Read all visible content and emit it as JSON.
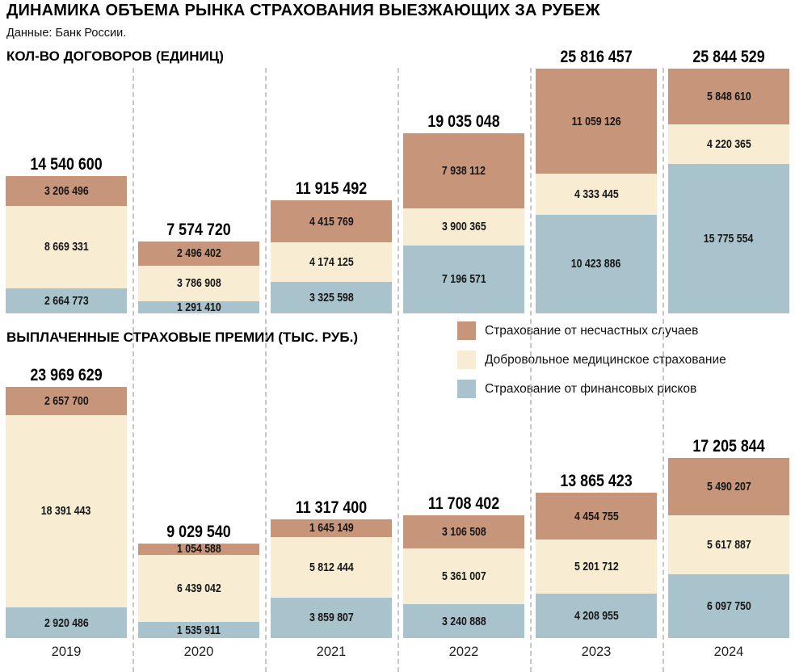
{
  "title": "ДИНАМИКА ОБЪЕМА РЫНКА СТРАХОВАНИЯ ВЫЕЗЖАЮЩИХ ЗА РУБЕЖ",
  "source": "Данные: Банк России.",
  "colors": {
    "accident": "#c79579",
    "medical": "#f8ecd3",
    "financial": "#a9c3cc",
    "separator": "#c7c7c7"
  },
  "legend": [
    {
      "key": "accident",
      "label": "Страхование от несчастных случаев"
    },
    {
      "key": "medical",
      "label": "Добровольное медицинское страхование"
    },
    {
      "key": "financial",
      "label": "Страхование от финансовых рисков"
    }
  ],
  "years": [
    "2019",
    "2020",
    "2021",
    "2022",
    "2023",
    "2024"
  ],
  "chart_data": [
    {
      "type": "bar",
      "stacked": true,
      "title": "КОЛ-ВО ДОГОВОРОВ (ЕДИНИЦ)",
      "categories": [
        "2019",
        "2020",
        "2021",
        "2022",
        "2023",
        "2024"
      ],
      "totals": [
        14540600,
        7574720,
        11915492,
        19035048,
        25816457,
        25844529
      ],
      "series": [
        {
          "key": "accident",
          "name": "Страхование от несчастных случаев",
          "values": [
            3206496,
            2496402,
            4415769,
            7938112,
            11059126,
            5848610
          ]
        },
        {
          "key": "medical",
          "name": "Добровольное медицинское страхование",
          "values": [
            8669331,
            3786908,
            4174125,
            3900365,
            4333445,
            4220365
          ]
        },
        {
          "key": "financial",
          "name": "Страхование от финансовых рисков",
          "values": [
            2664773,
            1291410,
            3325598,
            7196571,
            10423886,
            15775554
          ]
        }
      ],
      "stack_order": "top-to-bottom",
      "ylim": [
        0,
        26100000
      ],
      "grid": false,
      "legend_position": "none"
    },
    {
      "type": "bar",
      "stacked": true,
      "title": "ВЫПЛАЧЕННЫЕ СТРАХОВЫЕ ПРЕМИИ (ТЫС. РУБ.)",
      "categories": [
        "2019",
        "2020",
        "2021",
        "2022",
        "2023",
        "2024"
      ],
      "totals": [
        23969629,
        9029540,
        11317400,
        11708402,
        13865423,
        17205844
      ],
      "series": [
        {
          "key": "accident",
          "name": "Страхование от несчастных случаев",
          "values": [
            2657700,
            1054588,
            1645149,
            3106508,
            4454755,
            5490207
          ]
        },
        {
          "key": "medical",
          "name": "Добровольное медицинское страхование",
          "values": [
            18391443,
            6439042,
            5812444,
            5361007,
            5201712,
            5617887
          ]
        },
        {
          "key": "financial",
          "name": "Страхование от финансовых рисков",
          "values": [
            2920486,
            1535911,
            3859807,
            3240888,
            4208955,
            6097750
          ]
        }
      ],
      "stack_order": "top-to-bottom",
      "ylim": [
        0,
        24300000
      ],
      "grid": false,
      "legend_position": "top-right"
    }
  ]
}
